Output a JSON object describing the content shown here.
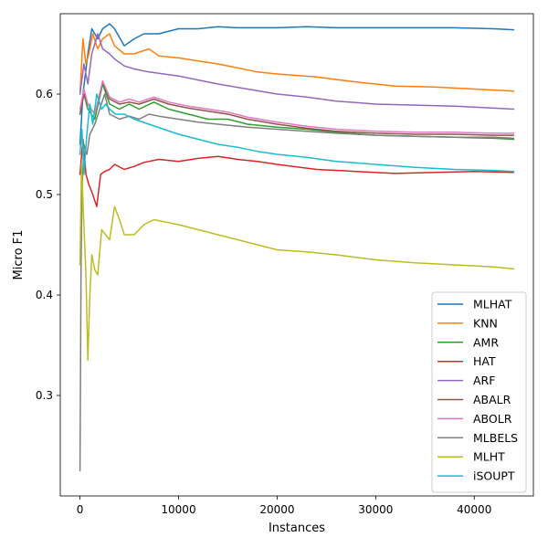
{
  "chart_data": {
    "type": "line",
    "title": "",
    "xlabel": "Instances",
    "ylabel": "Micro F1",
    "xlim": [
      -2000,
      46000
    ],
    "ylim": [
      0.2,
      0.68
    ],
    "xticks": [
      0,
      10000,
      20000,
      30000,
      40000
    ],
    "yticks": [
      0.3,
      0.4,
      0.5,
      0.6
    ],
    "xtick_labels": [
      "0",
      "10000",
      "20000",
      "30000",
      "40000"
    ],
    "ytick_labels": [
      "0.3",
      "0.4",
      "0.5",
      "0.6"
    ],
    "grid": false,
    "legend_position": "lower-right",
    "series": [
      {
        "name": "MLHAT",
        "color": "#1f77b4",
        "x": [
          0,
          300,
          800,
          1200,
          1800,
          2300,
          3000,
          3500,
          4500,
          5500,
          6500,
          8000,
          10000,
          12000,
          14000,
          16000,
          20000,
          23000,
          26000,
          30000,
          34000,
          38000,
          42000,
          44000
        ],
        "y": [
          0.55,
          0.6,
          0.64,
          0.665,
          0.655,
          0.665,
          0.67,
          0.665,
          0.648,
          0.655,
          0.66,
          0.66,
          0.665,
          0.665,
          0.667,
          0.666,
          0.666,
          0.667,
          0.666,
          0.666,
          0.666,
          0.666,
          0.665,
          0.664
        ]
      },
      {
        "name": "KNN",
        "color": "#ff7f0e",
        "x": [
          0,
          300,
          600,
          900,
          1300,
          1800,
          2300,
          3000,
          3500,
          4500,
          5500,
          7000,
          8000,
          10000,
          12000,
          14000,
          16000,
          18000,
          20000,
          24000,
          28000,
          32000,
          36000,
          40000,
          44000
        ],
        "y": [
          0.6,
          0.655,
          0.63,
          0.64,
          0.66,
          0.645,
          0.655,
          0.66,
          0.648,
          0.64,
          0.64,
          0.645,
          0.638,
          0.636,
          0.633,
          0.63,
          0.626,
          0.622,
          0.62,
          0.617,
          0.612,
          0.608,
          0.607,
          0.605,
          0.603
        ]
      },
      {
        "name": "AMR",
        "color": "#2ca02c",
        "x": [
          0,
          400,
          800,
          1500,
          2300,
          3000,
          4000,
          5000,
          6000,
          7500,
          9000,
          11000,
          13000,
          15000,
          17000,
          20000,
          23000,
          26000,
          30000,
          34000,
          38000,
          42000,
          44000
        ],
        "y": [
          0.58,
          0.6,
          0.585,
          0.575,
          0.61,
          0.59,
          0.585,
          0.59,
          0.585,
          0.592,
          0.585,
          0.58,
          0.575,
          0.575,
          0.57,
          0.567,
          0.565,
          0.562,
          0.559,
          0.558,
          0.557,
          0.556,
          0.555
        ]
      },
      {
        "name": "HAT",
        "color": "#d62728",
        "x": [
          0,
          300,
          600,
          900,
          1300,
          1700,
          2100,
          2500,
          3000,
          3500,
          4500,
          5500,
          6500,
          8000,
          10000,
          12000,
          14000,
          16000,
          18000,
          20000,
          24000,
          28000,
          32000,
          36000,
          40000,
          44000
        ],
        "y": [
          0.52,
          0.555,
          0.52,
          0.51,
          0.5,
          0.488,
          0.52,
          0.523,
          0.525,
          0.53,
          0.525,
          0.528,
          0.532,
          0.535,
          0.533,
          0.536,
          0.538,
          0.535,
          0.533,
          0.53,
          0.525,
          0.523,
          0.521,
          0.522,
          0.523,
          0.522
        ]
      },
      {
        "name": "ARF",
        "color": "#9467bd",
        "x": [
          0,
          400,
          800,
          1200,
          1800,
          2300,
          3000,
          3500,
          4500,
          5500,
          7000,
          8500,
          10000,
          12000,
          14000,
          17000,
          20000,
          23000,
          26000,
          30000,
          34000,
          38000,
          42000,
          44000
        ],
        "y": [
          0.6,
          0.63,
          0.61,
          0.64,
          0.66,
          0.645,
          0.64,
          0.635,
          0.628,
          0.625,
          0.622,
          0.62,
          0.618,
          0.614,
          0.61,
          0.605,
          0.6,
          0.597,
          0.593,
          0.59,
          0.589,
          0.588,
          0.586,
          0.585
        ]
      },
      {
        "name": "ABALR",
        "color": "#8c564b",
        "x": [
          0,
          400,
          800,
          1500,
          2300,
          3000,
          4000,
          5000,
          6000,
          7500,
          9000,
          11000,
          13000,
          15000,
          17000,
          20000,
          23000,
          26000,
          30000,
          34000,
          38000,
          42000,
          44000
        ],
        "y": [
          0.58,
          0.6,
          0.59,
          0.58,
          0.612,
          0.595,
          0.59,
          0.592,
          0.59,
          0.595,
          0.59,
          0.586,
          0.583,
          0.58,
          0.575,
          0.57,
          0.566,
          0.563,
          0.561,
          0.56,
          0.56,
          0.559,
          0.559
        ]
      },
      {
        "name": "ABOLR",
        "color": "#e377c2",
        "x": [
          0,
          400,
          800,
          1500,
          2300,
          3000,
          4000,
          5000,
          6000,
          7500,
          9000,
          11000,
          13000,
          15000,
          17000,
          20000,
          23000,
          26000,
          30000,
          34000,
          38000,
          42000,
          44000
        ],
        "y": [
          0.585,
          0.605,
          0.59,
          0.58,
          0.613,
          0.597,
          0.592,
          0.595,
          0.592,
          0.597,
          0.592,
          0.588,
          0.585,
          0.582,
          0.577,
          0.572,
          0.568,
          0.565,
          0.563,
          0.562,
          0.562,
          0.561,
          0.561
        ]
      },
      {
        "name": "MLBELS",
        "color": "#7f7f7f",
        "x": [
          0,
          100,
          200,
          400,
          700,
          1000,
          1500,
          2000,
          2500,
          3000,
          4000,
          5000,
          6000,
          7000,
          8000,
          10000,
          12000,
          14000,
          17000,
          20000,
          23000,
          26000,
          30000,
          34000,
          38000,
          42000,
          44000
        ],
        "y": [
          0.225,
          0.42,
          0.5,
          0.55,
          0.54,
          0.56,
          0.57,
          0.585,
          0.6,
          0.58,
          0.575,
          0.578,
          0.575,
          0.58,
          0.578,
          0.575,
          0.572,
          0.57,
          0.567,
          0.565,
          0.563,
          0.561,
          0.559,
          0.558,
          0.557,
          0.557,
          0.556
        ]
      },
      {
        "name": "MLHT",
        "color": "#bcbd22",
        "x": [
          0,
          150,
          350,
          600,
          800,
          1000,
          1200,
          1500,
          1800,
          2200,
          2600,
          3000,
          3500,
          4000,
          4500,
          5500,
          6500,
          7500,
          8500,
          10000,
          12000,
          14000,
          16000,
          18000,
          20000,
          23000,
          26000,
          30000,
          34000,
          38000,
          42000,
          44000
        ],
        "y": [
          0.43,
          0.53,
          0.48,
          0.42,
          0.335,
          0.4,
          0.44,
          0.425,
          0.42,
          0.465,
          0.46,
          0.455,
          0.488,
          0.475,
          0.46,
          0.46,
          0.47,
          0.475,
          0.473,
          0.47,
          0.465,
          0.46,
          0.455,
          0.45,
          0.445,
          0.443,
          0.44,
          0.435,
          0.432,
          0.43,
          0.428,
          0.426
        ]
      },
      {
        "name": "iSOUPT",
        "color": "#17becf",
        "x": [
          0,
          200,
          400,
          700,
          1000,
          1300,
          1700,
          2200,
          2600,
          3000,
          3600,
          4500,
          5500,
          7000,
          8500,
          10000,
          12000,
          14000,
          16000,
          18000,
          20000,
          23000,
          26000,
          30000,
          34000,
          38000,
          42000,
          44000
        ],
        "y": [
          0.54,
          0.565,
          0.52,
          0.56,
          0.59,
          0.57,
          0.6,
          0.585,
          0.59,
          0.585,
          0.58,
          0.58,
          0.575,
          0.57,
          0.565,
          0.56,
          0.555,
          0.55,
          0.547,
          0.543,
          0.54,
          0.537,
          0.533,
          0.53,
          0.527,
          0.525,
          0.524,
          0.523
        ]
      }
    ]
  }
}
